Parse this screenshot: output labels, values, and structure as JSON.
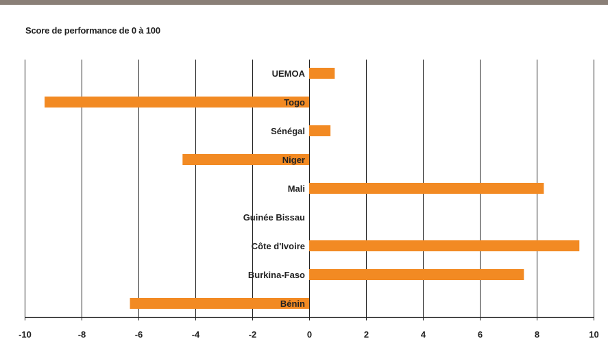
{
  "colors": {
    "bar": "#f28a23",
    "grid": "#222222",
    "top_rule": "#8a7f77"
  },
  "chart_data": {
    "type": "bar",
    "orientation": "horizontal",
    "title": "Score de performance de 0 à 100",
    "categories": [
      "UEMOA",
      "Togo",
      "Sénégal",
      "Niger",
      "Mali",
      "Guinée Bissau",
      "Côte d'Ivoire",
      "Burkina-Faso",
      "Bénin"
    ],
    "values": [
      0.9,
      -9.3,
      0.75,
      -4.45,
      8.25,
      0,
      9.5,
      7.55,
      -6.3
    ],
    "xlim": [
      -10,
      10
    ],
    "xticks": [
      -10,
      -8,
      -6,
      -4,
      -2,
      0,
      2,
      4,
      6,
      8,
      10
    ],
    "grid": true,
    "xlabel": "",
    "ylabel": ""
  }
}
